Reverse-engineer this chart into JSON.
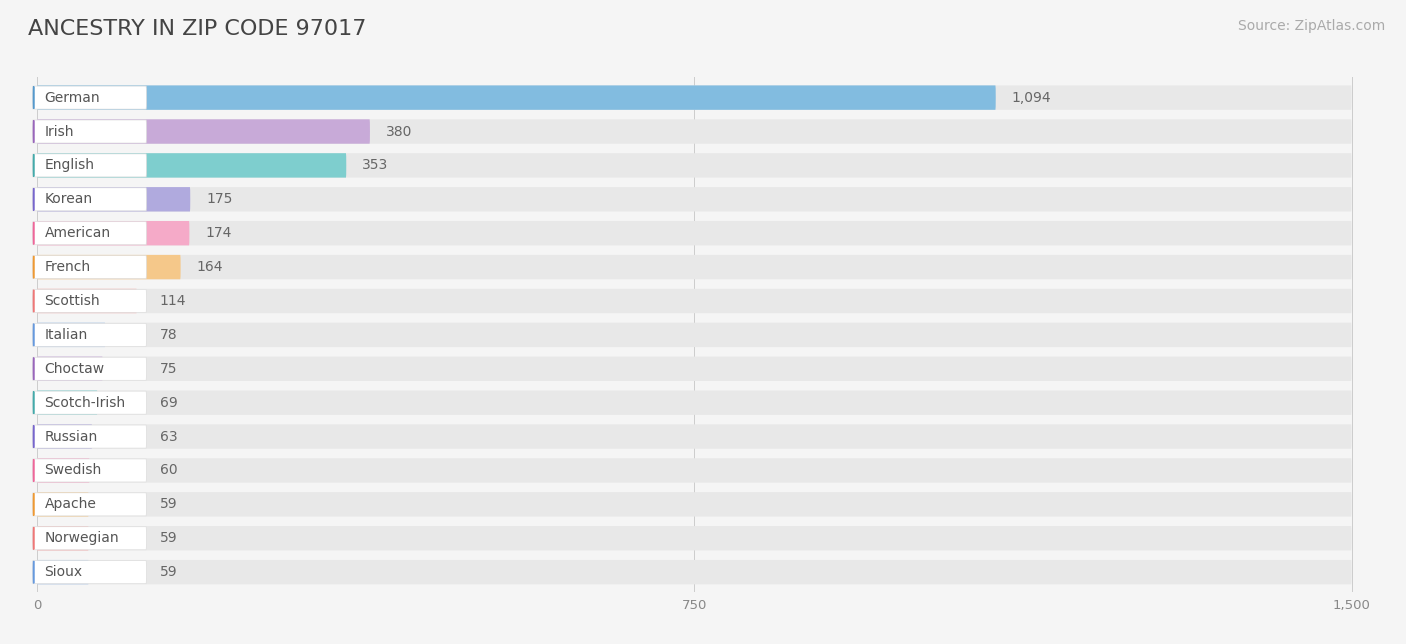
{
  "title": "ANCESTRY IN ZIP CODE 97017",
  "source": "Source: ZipAtlas.com",
  "categories": [
    "German",
    "Irish",
    "English",
    "Korean",
    "American",
    "French",
    "Scottish",
    "Italian",
    "Choctaw",
    "Scotch-Irish",
    "Russian",
    "Swedish",
    "Apache",
    "Norwegian",
    "Sioux"
  ],
  "values": [
    1094,
    380,
    353,
    175,
    174,
    164,
    114,
    78,
    75,
    69,
    63,
    60,
    59,
    59,
    59
  ],
  "bar_colors": [
    "#82bce0",
    "#c8aad8",
    "#7ecece",
    "#b0aade",
    "#f5aac8",
    "#f5c88a",
    "#f5aaa8",
    "#a8c5e8",
    "#c8aad8",
    "#7ecece",
    "#b0aade",
    "#f5aac8",
    "#f5c88a",
    "#f5aaa8",
    "#a8c5e8"
  ],
  "dot_colors": [
    "#5599cc",
    "#9966bb",
    "#44aaaa",
    "#7766cc",
    "#ee6699",
    "#ee9933",
    "#ee7777",
    "#6699dd",
    "#9966bb",
    "#44aaaa",
    "#7766cc",
    "#ee6699",
    "#ee9933",
    "#ee7777",
    "#6699dd"
  ],
  "xlim_max": 1500,
  "xticks": [
    0,
    750,
    1500
  ],
  "background_color": "#f5f5f5",
  "bar_bg_color": "#e8e8e8",
  "white_label_bg": "#ffffff",
  "title_fontsize": 16,
  "source_fontsize": 10,
  "label_fontsize": 10,
  "value_fontsize": 10
}
